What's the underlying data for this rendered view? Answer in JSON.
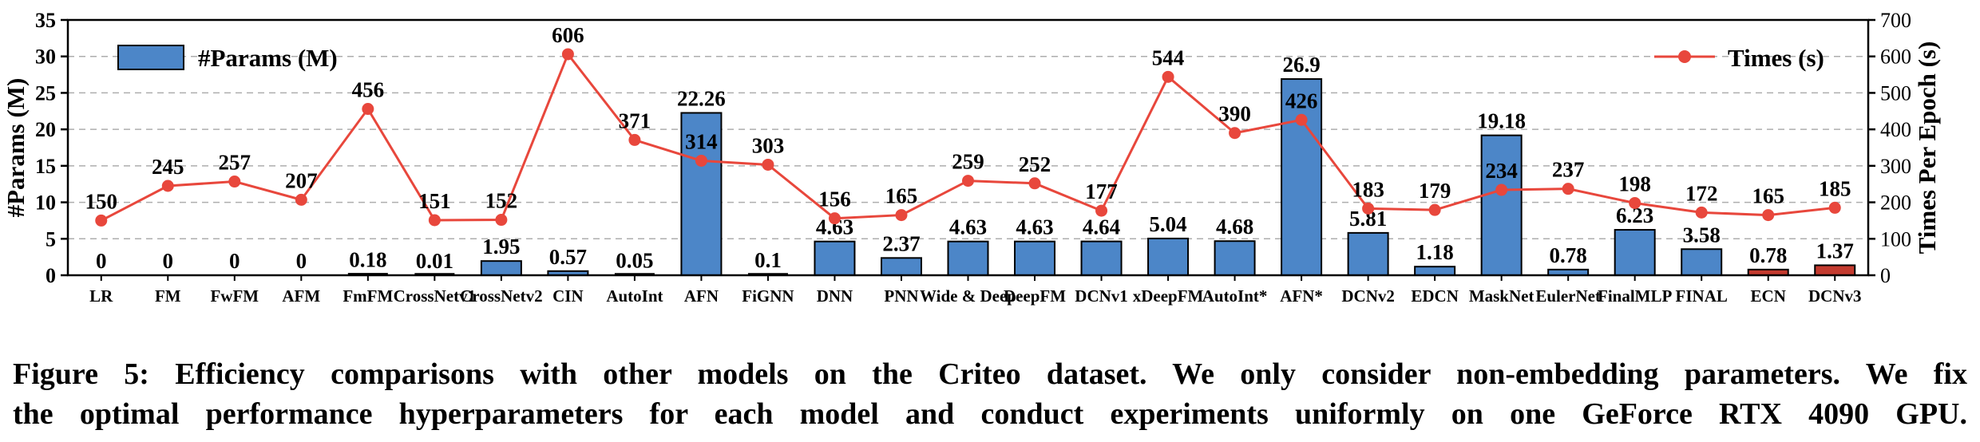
{
  "figure": {
    "caption_line1": "Figure 5: Efficiency comparisons with other models on the Criteo dataset. We only consider non-embedding parameters. We fix",
    "caption_line2": "the optimal performance hyperparameters for each model and conduct experiments uniformly on one GeForce RTX 4090 GPU."
  },
  "chart_data": {
    "type": "bar+line",
    "categories": [
      "LR",
      "FM",
      "FwFM",
      "AFM",
      "FmFM",
      "CrossNetv1",
      "CrossNetv2",
      "CIN",
      "AutoInt",
      "AFN",
      "FiGNN",
      "DNN",
      "PNN",
      "Wide & Deep",
      "DeepFM",
      "DCNv1",
      "xDeepFM",
      "AutoInt*",
      "AFN*",
      "DCNv2",
      "EDCN",
      "MaskNet",
      "EulerNet",
      "FinalMLP",
      "FINAL",
      "ECN",
      "DCNv3"
    ],
    "series": [
      {
        "name": "#Params (M)",
        "type": "bar",
        "axis": "left",
        "values": [
          0,
          0,
          0,
          0,
          0.18,
          0.01,
          1.95,
          0.57,
          0.05,
          22.26,
          0.1,
          4.63,
          2.37,
          4.63,
          4.63,
          4.64,
          5.04,
          4.68,
          26.9,
          5.81,
          1.18,
          19.18,
          0.78,
          6.23,
          3.58,
          0.78,
          1.37
        ],
        "value_labels": [
          "0",
          "0",
          "0",
          "0",
          "0.18",
          "0.01",
          "1.95",
          "0.57",
          "0.05",
          "22.26",
          "0.1",
          "4.63",
          "2.37",
          "4.63",
          "4.63",
          "4.64",
          "5.04",
          "4.68",
          "26.9",
          "5.81",
          "1.18",
          "19.18",
          "0.78",
          "6.23",
          "3.58",
          "0.78",
          "1.37"
        ],
        "highlight_indices": [
          25,
          26
        ]
      },
      {
        "name": "Times (s)",
        "type": "line",
        "axis": "right",
        "values": [
          150,
          245,
          257,
          207,
          456,
          151,
          152,
          606,
          371,
          314,
          303,
          156,
          165,
          259,
          252,
          177,
          544,
          390,
          426,
          183,
          179,
          234,
          237,
          198,
          172,
          165,
          185
        ]
      }
    ],
    "left_axis": {
      "label": "#Params (M)",
      "min": 0,
      "max": 35,
      "ticks": [
        0,
        5,
        10,
        15,
        20,
        25,
        30,
        35
      ]
    },
    "right_axis": {
      "label": "Times Per Epoch (s)",
      "min": 0,
      "max": 700,
      "ticks": [
        0,
        100,
        200,
        300,
        400,
        500,
        600,
        700
      ]
    },
    "colors": {
      "bar": "#4C86C8",
      "bar_highlight": "#C43B2F",
      "line": "#E8473C",
      "grid": "#AEAEAE",
      "spine": "#000000"
    },
    "grid": "horizontal dashed",
    "legend_position": {
      "params": "top-left-inside",
      "times": "top-right-inside"
    }
  }
}
